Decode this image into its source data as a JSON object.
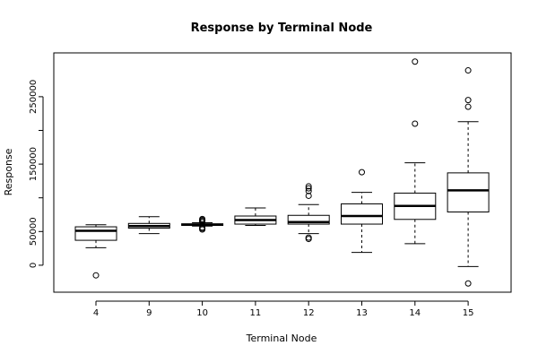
{
  "chart_data": {
    "type": "box",
    "title": "Response by Terminal Node",
    "xlabel": "Terminal Node",
    "ylabel": "Response",
    "ylim": [
      -40000,
      315000
    ],
    "y_ticks": [
      0,
      50000,
      150000,
      250000
    ],
    "y_tick_labels": [
      "0",
      "50000",
      "150000",
      "250000"
    ],
    "y_tick_marks": [
      0,
      50000,
      100000,
      150000,
      200000,
      250000
    ],
    "grid": false,
    "categories": [
      "4",
      "9",
      "10",
      "11",
      "12",
      "13",
      "14",
      "15"
    ],
    "boxes": [
      {
        "category": "4",
        "low": 26000,
        "q1": 37000,
        "median": 51000,
        "q3": 57000,
        "high": 60000,
        "outliers": [
          -15000
        ]
      },
      {
        "category": "9",
        "low": 47000,
        "q1": 55000,
        "median": 58000,
        "q3": 62000,
        "high": 72000,
        "outliers": []
      },
      {
        "category": "10",
        "low": 58000,
        "q1": 59000,
        "median": 60000,
        "q3": 61500,
        "high": 63000,
        "outliers": [
          53000,
          54500,
          56000,
          64000,
          65500,
          67000,
          68500
        ]
      },
      {
        "category": "11",
        "low": 59000,
        "q1": 61000,
        "median": 67000,
        "q3": 73000,
        "high": 85000,
        "outliers": []
      },
      {
        "category": "12",
        "low": 47000,
        "q1": 61000,
        "median": 64000,
        "q3": 74000,
        "high": 90000,
        "outliers": [
          39000,
          41000,
          103000,
          110000,
          114000,
          117000
        ]
      },
      {
        "category": "13",
        "low": 19000,
        "q1": 61000,
        "median": 73000,
        "q3": 91000,
        "high": 108000,
        "outliers": [
          138000
        ]
      },
      {
        "category": "14",
        "low": 32000,
        "q1": 68000,
        "median": 88000,
        "q3": 107000,
        "high": 152000,
        "outliers": [
          210000,
          302000
        ]
      },
      {
        "category": "15",
        "low": -2000,
        "q1": 79000,
        "median": 111000,
        "q3": 137000,
        "high": 213000,
        "outliers": [
          -27000,
          235000,
          245000,
          289000
        ]
      }
    ]
  }
}
